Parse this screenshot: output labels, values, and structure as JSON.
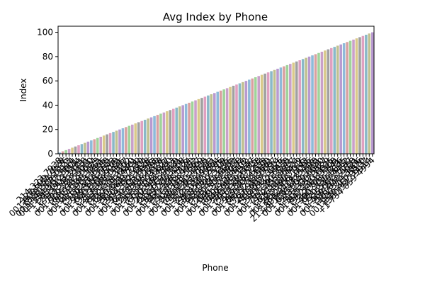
{
  "chart_data": {
    "type": "bar",
    "title": "Avg Index by Phone",
    "xlabel": "Phone",
    "ylabel": "Index",
    "ylim": [
      0,
      105
    ],
    "yticks": [
      0,
      20,
      40,
      60,
      80,
      100
    ],
    "grid": false,
    "legend": "none",
    "palette": [
      "#8ebad9",
      "#d9a0a0",
      "#9fd39a",
      "#c9a0c9",
      "#d9c98a",
      "#a0a0a0",
      "#e0a0c0",
      "#8ab8c8",
      "#c0c090",
      "#b89ad0"
    ],
    "categories": [
      "214-323-7938",
      "-127-609-7928",
      "001-608-354-9276",
      "(838)555-0123",
      "001-441-870-3314",
      "001-234-567-8901",
      "+1-555-012-3344",
      "(212)903-1111",
      "733-541-2918",
      "+1-707-333-2121",
      "001-909-222-5050",
      "(646)782-0034",
      "805-618-3323",
      "+1-614-240-7751",
      "001-415-903-8855",
      "(503)221-6788",
      "719-400-3321",
      "+1-929-118-0043",
      "001-650-871-2209",
      "(347)265-9981",
      "213-888-0445",
      "+1-818-502-3377",
      "001-832-774-1102",
      "(702)431-6650",
      "617-293-4401",
      "+1-480-621-7730",
      "001-305-448-2219",
      "(310)982-5504",
      "904-377-1128",
      "+1-971-205-8846",
      "001-650-421-7333",
      "(415)880-2290",
      "212-735-6618",
      "+1-303-842-1175",
      "001-773-509-6627",
      "(602)318-4480",
      "720-944-2213",
      "+1-206-571-8839",
      "001-512-663-0941",
      "(404)720-3358",
      "813-209-4476",
      "+1-650-388-1124",
      "001-917-445-7080",
      "(216)604-9952",
      "703-318-5567",
      "+1-845-662-3309",
      "001-786-210-4438",
      "(469)553-7721",
      "917-462-0083",
      "+1-412-735-9961",
      "001-248-319-6604",
      "(913)547-2286",
      "858-631-7709",
      "+1-615-209-3345",
      "001-925-780-1126",
      "(718)443-6659",
      "281-305-9917",
      "+1-646-577-2038",
      "001-341-225-8874",
      "(630)918-4402",
      "949-660-3381",
      "+1-559-803-1147",
      "001-704-229-6615",
      "(516)340-7728",
      "727-815-2294",
      "+1-919-405-6633",
      "001-860-772-1190",
      "(407)238-5561",
      "763-914-0087",
      "+1-240-663-7714",
      "001-408-517-3326",
      "(314)682-9905",
      "510-247-6638",
      "+1-757-390-2241",
      "001-201-455-8807",
      "(972)113-6624",
      "616-803-4419",
      "+1-523-990-7016",
      "001-952-368-1143",
      "(832)574-0096",
      "213-800-6408x5416",
      "+1-785-442-3318",
      "001-626-904-7751",
      "(573)219-6640",
      "415-330-8827",
      "+1-803-557-1129",
      "001-847-210-6635",
      "(952)461-3308",
      "312-708-5541",
      "+1-480-903-2276",
      "001-651-330-8845",
      "(720)519-4462",
      "925-662-1137",
      "+1-469-203-7758",
      "001-336-847-9921",
      "(201)574-3306",
      "626-311-8870",
      "001-210-457-1137",
      "(360)722-9914",
      "+1-734-859-4994"
    ],
    "values": [
      1,
      2,
      3,
      4,
      5,
      6,
      7,
      8,
      9,
      10,
      11,
      12,
      13,
      14,
      15,
      16,
      17,
      18,
      19,
      20,
      21,
      22,
      23,
      24,
      25,
      26,
      27,
      28,
      29,
      30,
      31,
      32,
      33,
      34,
      35,
      36,
      37,
      38,
      39,
      40,
      41,
      42,
      43,
      44,
      45,
      46,
      47,
      48,
      49,
      50,
      51,
      52,
      53,
      54,
      55,
      56,
      57,
      58,
      59,
      60,
      61,
      62,
      63,
      64,
      65,
      66,
      67,
      68,
      69,
      70,
      71,
      72,
      73,
      74,
      75,
      76,
      77,
      78,
      79,
      80,
      81,
      82,
      83,
      84,
      85,
      86,
      87,
      88,
      89,
      90,
      91,
      92,
      93,
      94,
      95,
      96,
      97,
      98,
      99,
      100
    ]
  }
}
